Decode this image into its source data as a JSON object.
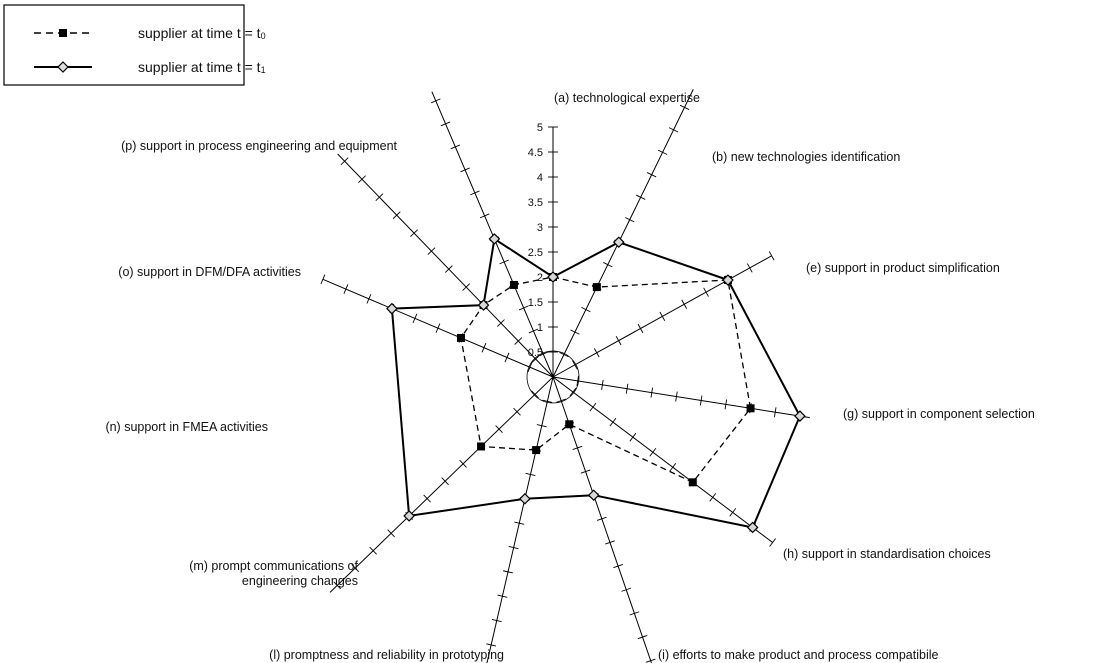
{
  "chart_data": {
    "type": "radar",
    "title": "",
    "scale": {
      "min": 0,
      "max": 5,
      "tick_step": 0.5,
      "tick_labels": [
        "0.5",
        "1",
        "1.5",
        "2",
        "2.5",
        "3",
        "3.5",
        "4",
        "4.5",
        "5"
      ]
    },
    "axes": [
      {
        "id": "a",
        "label": "(a) technological expertise"
      },
      {
        "id": "b",
        "label": "(b) new technologies identification"
      },
      {
        "id": "e",
        "label": "(e) support in product simplification"
      },
      {
        "id": "g",
        "label": "(g) support in component selection"
      },
      {
        "id": "h",
        "label": "(h)  support in standardisation choices"
      },
      {
        "id": "i",
        "label": "(i) efforts to make product and process compatibile"
      },
      {
        "id": "l",
        "label": "(l) promptness and reliability in prototyping"
      },
      {
        "id": "m",
        "label_lines": [
          "(m) prompt communications of",
          "engineering changes"
        ]
      },
      {
        "id": "n",
        "label": "(n) support in FMEA activities"
      },
      {
        "id": "o",
        "label": "(o) support in DFM/DFA activities"
      },
      {
        "id": "p",
        "label": "(p) support in process engineering and equipment"
      }
    ],
    "series": [
      {
        "name": "supplier at time t = t0",
        "legend_main": "supplier at time t = t",
        "legend_sub": "0",
        "style": "dashed",
        "marker": "square",
        "values": [
          2,
          2,
          4,
          4,
          3.5,
          1,
          1.5,
          2,
          2,
          2,
          2
        ]
      },
      {
        "name": "supplier at time t = t1",
        "legend_main": "supplier at time t = t",
        "legend_sub": "1",
        "style": "solid",
        "marker": "diamond",
        "values": [
          2,
          3,
          4,
          5,
          5,
          2.5,
          2.5,
          4,
          3.5,
          2,
          3
        ]
      }
    ],
    "legend": {
      "position": "top-left"
    }
  }
}
